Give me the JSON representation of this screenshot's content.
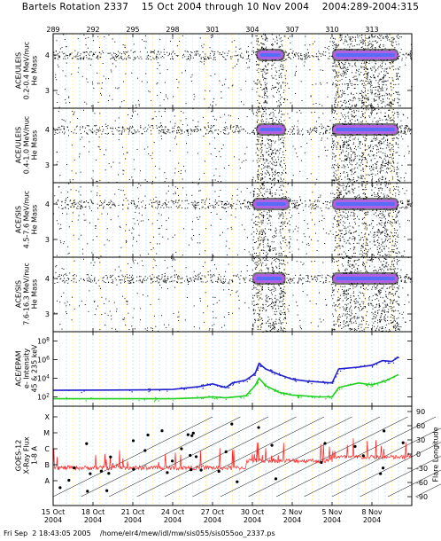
{
  "title": "Bartels Rotation 2337    15 Oct 2004 through 10 Nov 2004    2004:289-2004:315",
  "footer": "Fri Sep  2 18:43:05 2005    /home/elr4/mew/idl/mw/sis055/sis055oo_2337.ps",
  "colors": {
    "grid_yellow": "#f0e040",
    "grid_cyan": "#60d8e8",
    "band": "#b060e0",
    "band_core": "#4070ff",
    "epam_high": "#2020d0",
    "epam_low": "#20d020",
    "xray": "#ff2020"
  },
  "chart_data": [
    {
      "type": "scatter",
      "name_label": "ACE/ULEIS 0.2-0.4 MeV/nuc",
      "ylabel_lines": [
        "ACE/ULEIS",
        "0.2-0.4 MeV/nuc",
        "He Mass"
      ],
      "yticks": [
        "4",
        "3"
      ],
      "ylim": [
        2.5,
        4.6
      ],
      "band_intervals": [
        [
          304.3,
          306.4,
          1.0
        ],
        [
          310.0,
          315.0,
          1.0
        ]
      ],
      "band_center": 4.0
    },
    {
      "type": "scatter",
      "ylabel_lines": [
        "ACE/ULEIS",
        "0.4-1.0 MeV/nuc",
        "He Mass"
      ],
      "yticks": [
        "4",
        "3"
      ],
      "ylim": [
        2.5,
        4.6
      ],
      "band_intervals": [
        [
          304.3,
          306.5,
          1.0
        ],
        [
          310.0,
          315.0,
          1.0
        ]
      ],
      "band_center": 4.0
    },
    {
      "type": "scatter",
      "ylabel_lines": [
        "ACE/SIS",
        "4.5-7.6 MeV/nuc",
        "He Mass"
      ],
      "yticks": [
        "4",
        "3"
      ],
      "ylim": [
        2.5,
        4.6
      ],
      "band_intervals": [
        [
          304.0,
          306.8,
          1.0
        ],
        [
          310.0,
          315.0,
          1.0
        ]
      ],
      "band_center": 4.0
    },
    {
      "type": "scatter",
      "ylabel_lines": [
        "ACE/SIS",
        "7.6-16.3 MeV/nuc",
        "He Mass"
      ],
      "yticks": [
        "4",
        "3"
      ],
      "ylim": [
        2.5,
        4.6
      ],
      "band_intervals": [
        [
          304.0,
          306.5,
          1.0
        ],
        [
          310.0,
          315.0,
          1.0
        ]
      ],
      "band_center": 4.0
    },
    {
      "type": "line",
      "ylabel_lines": [
        "ACE/EPAM",
        "e- Intensity",
        "45 & 235 keV"
      ],
      "yticks": [
        "10^8",
        "10^6",
        "10^4",
        "10^2"
      ],
      "yscale": "log",
      "ylim": [
        1,
        9
      ],
      "series": [
        {
          "x": [
            289,
            296,
            298,
            300,
            301,
            302,
            302.5,
            303.5,
            304.2,
            304.5,
            305,
            306,
            307,
            308,
            309,
            310,
            310.5,
            312,
            313,
            313.8,
            314.5,
            315
          ],
          "values": [
            2.7,
            2.75,
            2.8,
            3.1,
            3.4,
            3.0,
            3.5,
            3.8,
            4.5,
            5.6,
            5.0,
            4.4,
            3.9,
            3.7,
            3.6,
            3.5,
            5.0,
            5.2,
            5.4,
            5.9,
            5.8,
            6.3
          ],
          "color": "#2020d0"
        },
        {
          "x": [
            289,
            296,
            298,
            300,
            301,
            302,
            303.5,
            304.2,
            304.5,
            305,
            306,
            307,
            308,
            309,
            310,
            310.5,
            312,
            313,
            314,
            315
          ],
          "values": [
            1.8,
            1.8,
            1.8,
            1.9,
            2.0,
            1.9,
            2.1,
            3.2,
            4.0,
            3.2,
            2.5,
            2.2,
            2.1,
            2.0,
            2.0,
            3.0,
            3.5,
            3.3,
            3.7,
            4.4
          ],
          "color": "#20d020"
        }
      ]
    },
    {
      "type": "line",
      "ylabel_lines": [
        "GOES-12",
        "X-Ray Flux",
        "1-8 A"
      ],
      "yticks": [
        "X",
        "M",
        "C",
        "B",
        "A"
      ],
      "y2label": "Flare Longitude",
      "y2ticks": [
        "90",
        "60",
        "30",
        "0",
        "-30",
        "-60",
        "-90"
      ],
      "series_color": "#ff2020"
    }
  ],
  "x_axis": {
    "top_ticks": [
      "289",
      "292",
      "295",
      "298",
      "301",
      "304",
      "307",
      "310",
      "313"
    ],
    "bottom_ticks": [
      {
        "day": "15 Oct",
        "year": "2004"
      },
      {
        "day": "18 Oct",
        "year": "2004"
      },
      {
        "day": "21 Oct",
        "year": "2004"
      },
      {
        "day": "24 Oct",
        "year": "2004"
      },
      {
        "day": "27 Oct",
        "year": "2004"
      },
      {
        "day": "30 Oct",
        "year": "2004"
      },
      {
        "day": "2 Nov",
        "year": "2004"
      },
      {
        "day": "5 Nov",
        "year": "2004"
      },
      {
        "day": "8 Nov",
        "year": "2004"
      }
    ],
    "range": [
      289,
      316
    ]
  }
}
